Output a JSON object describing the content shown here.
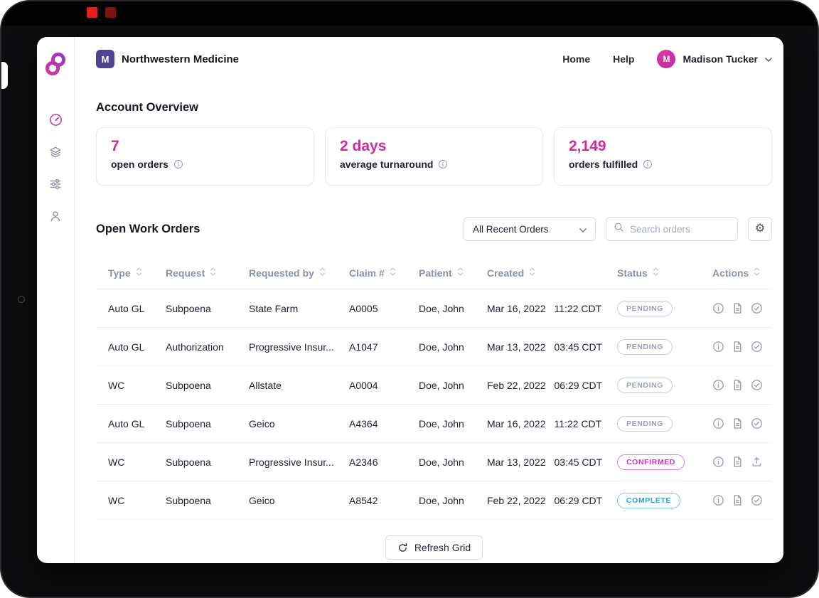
{
  "header": {
    "org_logo_text": "M",
    "org_name": "Northwestern Medicine",
    "nav_home": "Home",
    "nav_help": "Help",
    "user_initial": "M",
    "user_name": "Madison Tucker"
  },
  "overview": {
    "title": "Account Overview",
    "stats": [
      {
        "value": "7",
        "label": "open orders"
      },
      {
        "value": "2 days",
        "label": "average turnaround"
      },
      {
        "value": "2,149",
        "label": "orders fulfilled"
      }
    ]
  },
  "orders": {
    "title": "Open Work Orders",
    "filter_value": "All Recent Orders",
    "search_placeholder": "Search orders",
    "columns": [
      "Type",
      "Request",
      "Requested by",
      "Claim #",
      "Patient",
      "Created",
      "Status",
      "Actions"
    ],
    "rows": [
      {
        "type": "Auto GL",
        "request": "Subpoena",
        "requested_by": "State Farm",
        "claim": "A0005",
        "patient": "Doe, John",
        "created_date": "Mar 16, 2022",
        "created_time": "11:22 CDT",
        "status": "PENDING",
        "actions": [
          "info",
          "document",
          "check"
        ]
      },
      {
        "type": "Auto GL",
        "request": "Authorization",
        "requested_by": "Progressive Insur...",
        "claim": "A1047",
        "patient": "Doe, John",
        "created_date": "Mar 13, 2022",
        "created_time": "03:45 CDT",
        "status": "PENDING",
        "actions": [
          "info",
          "document",
          "check"
        ]
      },
      {
        "type": "WC",
        "request": "Subpoena",
        "requested_by": "Allstate",
        "claim": "A0004",
        "patient": "Doe, John",
        "created_date": "Feb 22, 2022",
        "created_time": "06:29 CDT",
        "status": "PENDING",
        "actions": [
          "info",
          "document",
          "check"
        ]
      },
      {
        "type": "Auto GL",
        "request": "Subpoena",
        "requested_by": "Geico",
        "claim": "A4364",
        "patient": "Doe, John",
        "created_date": "Mar 16, 2022",
        "created_time": "11:22 CDT",
        "status": "PENDING",
        "actions": [
          "info",
          "document",
          "check"
        ]
      },
      {
        "type": "WC",
        "request": "Subpoena",
        "requested_by": "Progressive Insur...",
        "claim": "A2346",
        "patient": "Doe, John",
        "created_date": "Mar 13, 2022",
        "created_time": "03:45 CDT",
        "status": "CONFIRMED",
        "actions": [
          "info",
          "document",
          "upload"
        ]
      },
      {
        "type": "WC",
        "request": "Subpoena",
        "requested_by": "Geico",
        "claim": "A8542",
        "patient": "Doe, John",
        "created_date": "Feb 22, 2022",
        "created_time": "06:29 CDT",
        "status": "COMPLETE",
        "actions": [
          "info",
          "document",
          "check"
        ]
      }
    ],
    "refresh_label": "Refresh Grid"
  },
  "colors": {
    "accent": "#d42a9d",
    "status_pending": "#99a1b4",
    "status_confirmed": "#cb35bd",
    "status_complete": "#2aa3db",
    "org_purple": "#514394"
  }
}
